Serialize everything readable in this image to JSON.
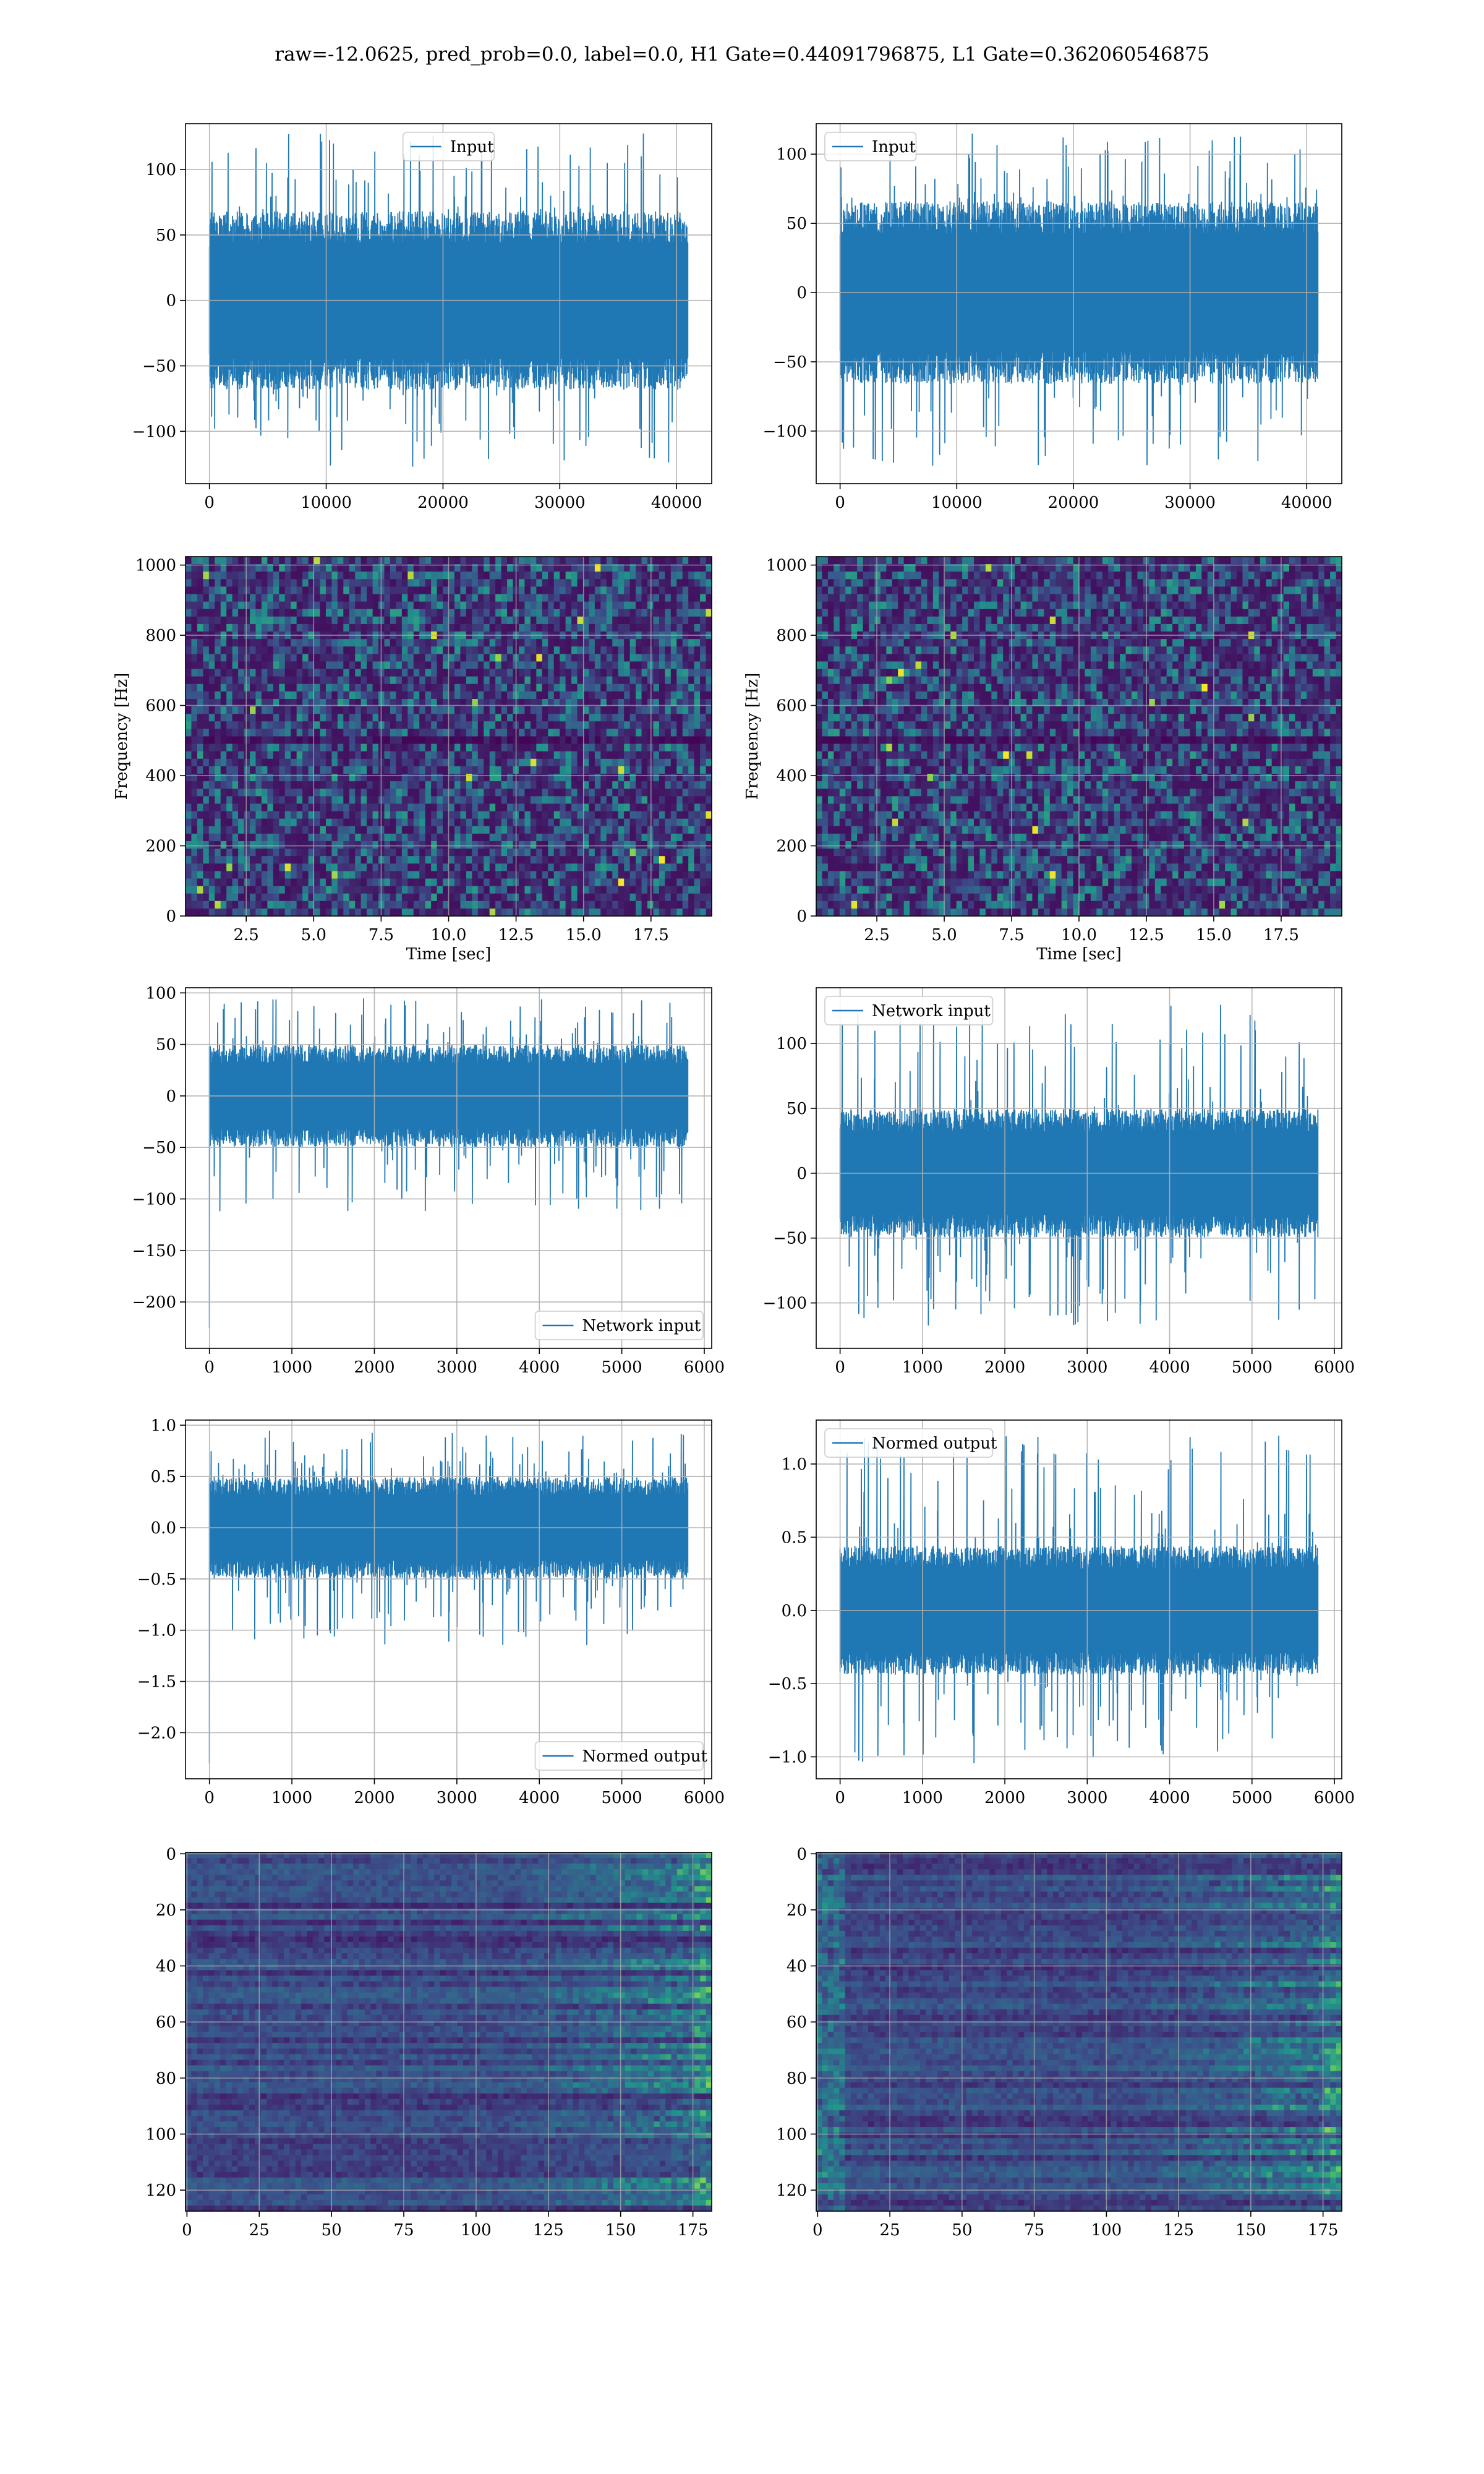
{
  "title": "raw=-12.0625, pred_prob=0.0, label=0.0, H1 Gate=0.44091796875, L1 Gate=0.362060546875",
  "colors": {
    "line": "#1f77b4",
    "grid": "#b0b0b0",
    "viridis_low": "#440154",
    "viridis_mid": "#21918c",
    "viridis_high": "#fde725"
  },
  "chart_data": [
    {
      "id": "p00",
      "type": "line",
      "row": 0,
      "col": 0,
      "title": "",
      "xlabel": "",
      "ylabel": "",
      "xlim": [
        -2048,
        43008
      ],
      "ylim": [
        -140,
        135
      ],
      "xticks": [
        0,
        10000,
        20000,
        30000,
        40000
      ],
      "yticks": [
        -100,
        -50,
        0,
        50,
        100
      ],
      "legend": {
        "loc": "upper center",
        "entries": [
          "Input"
        ]
      },
      "grid": true,
      "series": [
        {
          "name": "Input",
          "n_points": 40960,
          "x_range": [
            0,
            40960
          ],
          "band": [
            -62,
            62
          ],
          "peaks": [
            -128,
            128
          ]
        }
      ]
    },
    {
      "id": "p01",
      "type": "line",
      "row": 0,
      "col": 1,
      "title": "",
      "xlabel": "",
      "ylabel": "",
      "xlim": [
        -2048,
        43008
      ],
      "ylim": [
        -138,
        122
      ],
      "xticks": [
        0,
        10000,
        20000,
        30000,
        40000
      ],
      "yticks": [
        -100,
        -50,
        0,
        50,
        100
      ],
      "legend": {
        "loc": "upper left",
        "entries": [
          "Input"
        ]
      },
      "grid": true,
      "series": [
        {
          "name": "Input",
          "n_points": 40960,
          "x_range": [
            0,
            40960
          ],
          "band": [
            -60,
            60
          ],
          "peaks": [
            -125,
            115
          ]
        }
      ]
    },
    {
      "id": "p10",
      "type": "heatmap",
      "row": 1,
      "col": 0,
      "title": "",
      "xlabel": "Time [sec]",
      "ylabel": "Frequency [Hz]",
      "xlim": [
        0.25,
        19.75
      ],
      "ylim": [
        0,
        1024
      ],
      "xticks": [
        2.5,
        5.0,
        7.5,
        10.0,
        12.5,
        15.0,
        17.5
      ],
      "xtick_labels": [
        "2.5",
        "5.0",
        "7.5",
        "10.0",
        "12.5",
        "15.0",
        "17.5"
      ],
      "yticks": [
        0,
        200,
        400,
        600,
        800,
        1000
      ],
      "grid": true,
      "colormap": "viridis",
      "dark_band_hz": 500
    },
    {
      "id": "p11",
      "type": "heatmap",
      "row": 1,
      "col": 1,
      "title": "",
      "xlabel": "Time [sec]",
      "ylabel": "Frequency [Hz]",
      "xlim": [
        0.25,
        19.75
      ],
      "ylim": [
        0,
        1024
      ],
      "xticks": [
        2.5,
        5.0,
        7.5,
        10.0,
        12.5,
        15.0,
        17.5
      ],
      "xtick_labels": [
        "2.5",
        "5.0",
        "7.5",
        "10.0",
        "12.5",
        "15.0",
        "17.5"
      ],
      "yticks": [
        0,
        200,
        400,
        600,
        800,
        1000
      ],
      "grid": true,
      "colormap": "viridis",
      "dark_band_hz": 500
    },
    {
      "id": "p20",
      "type": "line",
      "row": 2,
      "col": 0,
      "title": "",
      "xlabel": "",
      "ylabel": "",
      "xlim": [
        -290,
        6090
      ],
      "ylim": [
        -245,
        105
      ],
      "xticks": [
        0,
        1000,
        2000,
        3000,
        4000,
        5000,
        6000
      ],
      "yticks": [
        -200,
        -150,
        -100,
        -50,
        0,
        50,
        100
      ],
      "legend": {
        "loc": "lower right",
        "entries": [
          "Network input"
        ]
      },
      "grid": true,
      "series": [
        {
          "name": "Network input",
          "n_points": 5800,
          "x_range": [
            0,
            5800
          ],
          "band": [
            -45,
            45
          ],
          "peaks": [
            -115,
            95
          ],
          "start_spike": -225
        }
      ]
    },
    {
      "id": "p21",
      "type": "line",
      "row": 2,
      "col": 1,
      "title": "",
      "xlabel": "",
      "ylabel": "",
      "xlim": [
        -290,
        6090
      ],
      "ylim": [
        -135,
        143
      ],
      "xticks": [
        0,
        1000,
        2000,
        3000,
        4000,
        5000,
        6000
      ],
      "yticks": [
        -100,
        -50,
        0,
        50,
        100
      ],
      "legend": {
        "loc": "upper left",
        "entries": [
          "Network input"
        ]
      },
      "grid": true,
      "series": [
        {
          "name": "Network input",
          "n_points": 5800,
          "x_range": [
            0,
            5800
          ],
          "band": [
            -45,
            45
          ],
          "peaks": [
            -120,
            130
          ]
        }
      ]
    },
    {
      "id": "p30",
      "type": "line",
      "row": 3,
      "col": 0,
      "title": "",
      "xlabel": "",
      "ylabel": "",
      "xlim": [
        -290,
        6090
      ],
      "ylim": [
        -2.45,
        1.05
      ],
      "xticks": [
        0,
        1000,
        2000,
        3000,
        4000,
        5000,
        6000
      ],
      "yticks": [
        -2.0,
        -1.5,
        -1.0,
        -0.5,
        0.0,
        0.5,
        1.0
      ],
      "ytick_labels": [
        "−2.0",
        "−1.5",
        "−1.0",
        "−0.5",
        "0.0",
        "0.5",
        "1.0"
      ],
      "legend": {
        "loc": "lower right",
        "entries": [
          "Normed output"
        ]
      },
      "grid": true,
      "series": [
        {
          "name": "Normed output",
          "n_points": 5800,
          "x_range": [
            0,
            5800
          ],
          "band": [
            -0.45,
            0.45
          ],
          "peaks": [
            -1.15,
            0.95
          ],
          "start_spike": -2.3
        }
      ]
    },
    {
      "id": "p31",
      "type": "line",
      "row": 3,
      "col": 1,
      "title": "",
      "xlabel": "",
      "ylabel": "",
      "xlim": [
        -290,
        6090
      ],
      "ylim": [
        -1.15,
        1.3
      ],
      "xticks": [
        0,
        1000,
        2000,
        3000,
        4000,
        5000,
        6000
      ],
      "yticks": [
        -1.0,
        -0.5,
        0.0,
        0.5,
        1.0
      ],
      "ytick_labels": [
        "−1.0",
        "−0.5",
        "0.0",
        "0.5",
        "1.0"
      ],
      "legend": {
        "loc": "upper left",
        "entries": [
          "Normed output"
        ]
      },
      "grid": true,
      "series": [
        {
          "name": "Normed output",
          "n_points": 5800,
          "x_range": [
            0,
            5800
          ],
          "band": [
            -0.4,
            0.4
          ],
          "peaks": [
            -1.05,
            1.2
          ]
        }
      ]
    },
    {
      "id": "p40",
      "type": "heatmap",
      "row": 4,
      "col": 0,
      "title": "",
      "xlabel": "",
      "ylabel": "",
      "xlim": [
        -0.5,
        181.5
      ],
      "ylim": [
        127.5,
        -0.5
      ],
      "xticks": [
        0,
        25,
        50,
        75,
        100,
        125,
        150,
        175
      ],
      "yticks": [
        0,
        20,
        40,
        60,
        80,
        100,
        120
      ],
      "grid": true,
      "colormap": "viridis",
      "n_rows": 128,
      "n_cols": 182,
      "bright_region": "right"
    },
    {
      "id": "p41",
      "type": "heatmap",
      "row": 4,
      "col": 1,
      "title": "",
      "xlabel": "",
      "ylabel": "",
      "xlim": [
        -0.5,
        181.5
      ],
      "ylim": [
        127.5,
        -0.5
      ],
      "xticks": [
        0,
        25,
        50,
        75,
        100,
        125,
        150,
        175
      ],
      "yticks": [
        0,
        20,
        40,
        60,
        80,
        100,
        120
      ],
      "grid": true,
      "colormap": "viridis",
      "n_rows": 128,
      "n_cols": 182,
      "bright_region": "right"
    }
  ]
}
